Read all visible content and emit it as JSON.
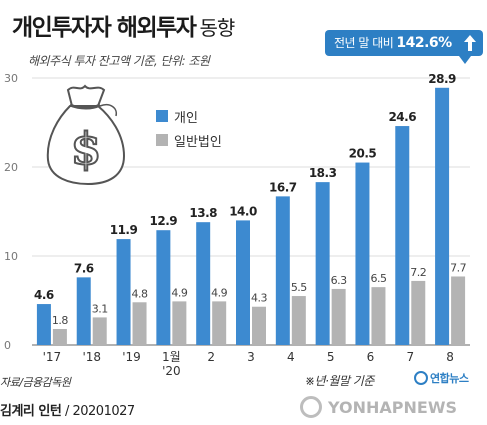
{
  "header": {
    "title": "개인투자자 해외투자",
    "title_suffix": "동향",
    "subtitle": "해외주식 투자 잔고액 기준, 단위: 조원"
  },
  "callout": {
    "text": "전년 말 대비",
    "value": "142.6%"
  },
  "footer": {
    "source": "자료/금융감독원",
    "note": "※년·월말 기준",
    "logo": "연합뉴스",
    "credit_name": "김계리 인턴",
    "credit_date": "20201027",
    "watermark": "YONHAPNEWS"
  },
  "colors": {
    "individual": "#3d8ad0",
    "corporate": "#b3b3b3",
    "accent": "#2d7fc4",
    "grid": "#dddddd"
  },
  "icons": {
    "moneybag": "money-bag-icon",
    "arrow": "up-arrow-icon"
  },
  "chart_data": {
    "type": "bar",
    "title": "개인투자자 해외투자 동향",
    "subtitle": "해외주식 투자 잔고액 기준, 단위: 조원",
    "categories": [
      "'17",
      "'18",
      "'19",
      "1월\n'20",
      "2",
      "3",
      "4",
      "5",
      "6",
      "7",
      "8"
    ],
    "category_lines": [
      [
        "'17"
      ],
      [
        "'18"
      ],
      [
        "'19"
      ],
      [
        "1월",
        "'20"
      ],
      [
        "2"
      ],
      [
        "3"
      ],
      [
        "4"
      ],
      [
        "5"
      ],
      [
        "6"
      ],
      [
        "7"
      ],
      [
        "8"
      ]
    ],
    "series": [
      {
        "name": "개인",
        "values": [
          4.6,
          7.6,
          11.9,
          12.9,
          13.8,
          14.0,
          16.7,
          18.3,
          20.5,
          24.6,
          28.9
        ],
        "labels": [
          "4.6",
          "7.6",
          "11.9",
          "12.9",
          "13.8",
          "14.0",
          "16.7",
          "18.3",
          "20.5",
          "24.6",
          "28.9"
        ]
      },
      {
        "name": "일반법인",
        "values": [
          1.8,
          3.1,
          4.8,
          4.9,
          4.9,
          4.3,
          5.5,
          6.3,
          6.5,
          7.2,
          7.7
        ],
        "labels": [
          "1.8",
          "3.1",
          "4.8",
          "4.9",
          "4.9",
          "4.3",
          "5.5",
          "6.3",
          "6.5",
          "7.2",
          "7.7"
        ]
      }
    ],
    "yticks": [
      0,
      10,
      20,
      30
    ],
    "ylim": [
      0,
      30
    ],
    "grid": true,
    "legend_position": "top-left"
  }
}
